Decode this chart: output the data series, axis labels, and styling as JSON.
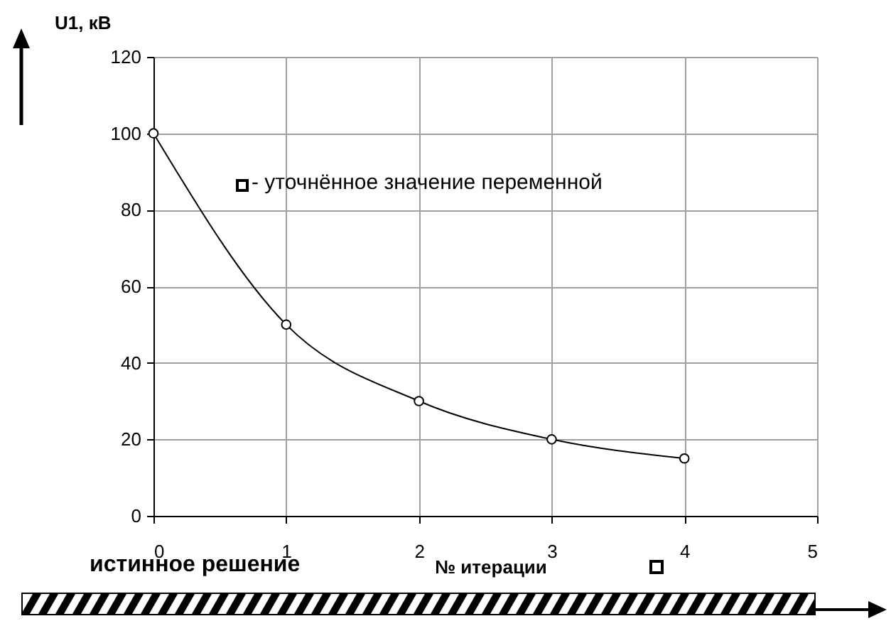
{
  "chart_data": {
    "type": "line",
    "ylabel": "U1, кВ",
    "xlabel": "№ итерации",
    "x": [
      0,
      1,
      2,
      3,
      4
    ],
    "series": [
      {
        "color": "#000000",
        "values": [
          100,
          50,
          30,
          20,
          15
        ]
      }
    ],
    "xlim": [
      0,
      5
    ],
    "xticks": [
      0,
      1,
      2,
      3,
      4,
      5
    ],
    "ylim": [
      0,
      120
    ],
    "yticks": [
      0,
      20,
      40,
      60,
      80,
      100,
      120
    ],
    "grid": true,
    "marker": "circle",
    "line_style": "solid",
    "annotations": [
      "- уточнённое значение переменной",
      "истинное решение"
    ]
  }
}
